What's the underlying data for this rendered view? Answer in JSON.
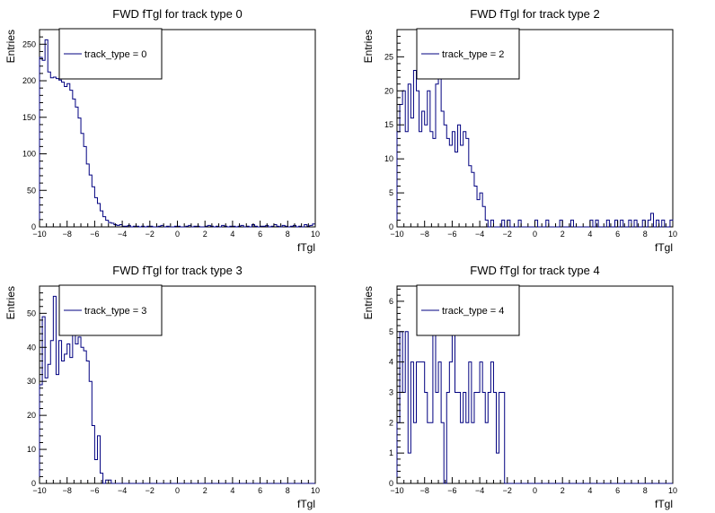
{
  "chart_data": [
    {
      "type": "histogram",
      "title": "FWD fTgl for track type 0",
      "xlabel": "fTgl",
      "ylabel": "Entries",
      "xlim": [
        -10,
        10
      ],
      "ylim": [
        0,
        270
      ],
      "xticks": [
        -10,
        -8,
        -6,
        -4,
        -2,
        0,
        2,
        4,
        6,
        8,
        10
      ],
      "yticks": [
        0,
        50,
        100,
        150,
        200,
        250
      ],
      "legend": {
        "label": "track_type = 0",
        "placement": "top-left"
      },
      "series": [
        {
          "name": "track_type = 0",
          "bin_edges_range": [
            -10,
            10
          ],
          "values": [
            232,
            228,
            256,
            212,
            204,
            205,
            203,
            201,
            198,
            192,
            196,
            187,
            175,
            164,
            149,
            128,
            110,
            86,
            71,
            55,
            40,
            32,
            22,
            14,
            9,
            6,
            5,
            3,
            2,
            3,
            1,
            1,
            2,
            0,
            1,
            1,
            0,
            1,
            0,
            1,
            1,
            0,
            0,
            1,
            2,
            0,
            1,
            0,
            0,
            1,
            1,
            0,
            0,
            1,
            2,
            0,
            1,
            1,
            0,
            0,
            1,
            2,
            1,
            0,
            1,
            0,
            2,
            1,
            0,
            1,
            1,
            0,
            1,
            2,
            0,
            1,
            0,
            3,
            1,
            0,
            1,
            1,
            2,
            0,
            1,
            3,
            1,
            0,
            2,
            1,
            0,
            1,
            2,
            0,
            1,
            0,
            3,
            1,
            2,
            4
          ]
        }
      ]
    },
    {
      "type": "histogram",
      "title": "FWD fTgl for track type 2",
      "xlabel": "fTgl",
      "ylabel": "Entries",
      "xlim": [
        -10,
        10
      ],
      "ylim": [
        0,
        29
      ],
      "xticks": [
        -10,
        -8,
        -6,
        -4,
        -2,
        0,
        2,
        4,
        6,
        8,
        10
      ],
      "yticks": [
        0,
        5,
        10,
        15,
        20,
        25
      ],
      "legend": {
        "label": "track_type = 2",
        "placement": "top-left"
      },
      "series": [
        {
          "name": "track_type = 2",
          "bin_edges_range": [
            -10,
            10
          ],
          "values": [
            14,
            18,
            20,
            14,
            21,
            16,
            23,
            20,
            14,
            17,
            15,
            20,
            14,
            13,
            21,
            25,
            17,
            15,
            13,
            12,
            14,
            11,
            15,
            12,
            14,
            13,
            9,
            8,
            6,
            4,
            5,
            3,
            1,
            0,
            1,
            0,
            0,
            0,
            1,
            0,
            1,
            0,
            0,
            0,
            1,
            0,
            0,
            0,
            0,
            0,
            1,
            0,
            0,
            0,
            1,
            0,
            0,
            0,
            0,
            1,
            0,
            0,
            0,
            1,
            0,
            0,
            0,
            0,
            0,
            0,
            1,
            0,
            1,
            0,
            0,
            0,
            1,
            0,
            0,
            1,
            0,
            1,
            0,
            0,
            1,
            0,
            1,
            0,
            0,
            1,
            0,
            1,
            2,
            0,
            1,
            0,
            1,
            0,
            0,
            1
          ]
        }
      ]
    },
    {
      "type": "histogram",
      "title": "FWD fTgl for track type 3",
      "xlabel": "fTgl",
      "ylabel": "Entries",
      "xlim": [
        -10,
        10
      ],
      "ylim": [
        0,
        58
      ],
      "xticks": [
        -10,
        -8,
        -6,
        -4,
        -2,
        0,
        2,
        4,
        6,
        8,
        10
      ],
      "yticks": [
        0,
        10,
        20,
        30,
        40,
        50
      ],
      "legend": {
        "label": "track_type = 3",
        "placement": "top-left"
      },
      "series": [
        {
          "name": "track_type = 3",
          "bin_edges_range": [
            -10,
            10
          ],
          "values": [
            29,
            49,
            31,
            35,
            42,
            55,
            32,
            42,
            36,
            38,
            41,
            37,
            44,
            41,
            43,
            40,
            39,
            36,
            30,
            17,
            7,
            14,
            3,
            0,
            1,
            1,
            0,
            0,
            0,
            0,
            0,
            0,
            0,
            0,
            0,
            0,
            0,
            0,
            0,
            0,
            0,
            0,
            0,
            0,
            0,
            0,
            0,
            0,
            0,
            0,
            0,
            0,
            0,
            0,
            0,
            0,
            0,
            0,
            0,
            0,
            0,
            0,
            0,
            0,
            0,
            0,
            0,
            0,
            0,
            0,
            0,
            0,
            0,
            0,
            0,
            0,
            0,
            0,
            0,
            0,
            0,
            0,
            0,
            0,
            0,
            0,
            0,
            0,
            0,
            0,
            0,
            0,
            0,
            0,
            0,
            0,
            0,
            0,
            0,
            0
          ]
        }
      ]
    },
    {
      "type": "histogram",
      "title": "FWD fTgl for track type 4",
      "xlabel": "fTgl",
      "ylabel": "Entries",
      "xlim": [
        -10,
        10
      ],
      "ylim": [
        0,
        6.5
      ],
      "xticks": [
        -10,
        -8,
        -6,
        -4,
        -2,
        0,
        2,
        4,
        6,
        8,
        10
      ],
      "yticks": [
        0,
        1,
        2,
        3,
        4,
        5,
        6
      ],
      "legend": {
        "label": "track_type = 4",
        "placement": "top-left"
      },
      "series": [
        {
          "name": "track_type = 4",
          "bin_edges_range": [
            -10,
            10
          ],
          "values": [
            2,
            5,
            3,
            5,
            1,
            4,
            2,
            4,
            4,
            4,
            3,
            2,
            2,
            5,
            3,
            4,
            2,
            0,
            3,
            4,
            5,
            3,
            3,
            2,
            3,
            2,
            4,
            2,
            3,
            3,
            4,
            3,
            2,
            3,
            4,
            3,
            1,
            3,
            3,
            0,
            0,
            0,
            0,
            0,
            0,
            0,
            0,
            0,
            0,
            0,
            0,
            0,
            0,
            0,
            0,
            0,
            0,
            0,
            0,
            0,
            0,
            0,
            0,
            0,
            0,
            0,
            0,
            0,
            0,
            0,
            0,
            0,
            0,
            0,
            0,
            0,
            0,
            0,
            0,
            0,
            0,
            0,
            0,
            0,
            0,
            0,
            0,
            0,
            0,
            0,
            0,
            0,
            0,
            0,
            0,
            0,
            0,
            0,
            0,
            0
          ]
        }
      ]
    }
  ]
}
